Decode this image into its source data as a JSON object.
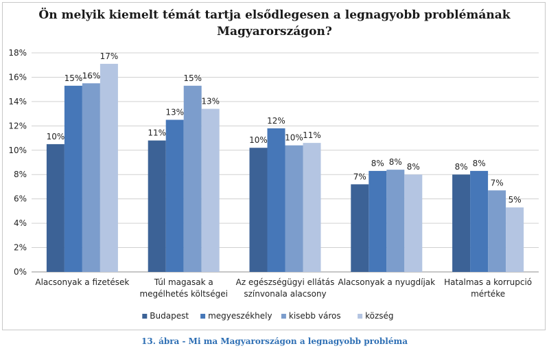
{
  "chart_data": {
    "type": "bar",
    "title_line1": "Ön melyik kiemelt témát tartja elsődlegesen a legnagyobb problémának",
    "title_line2": "Magyarországon?",
    "categories": [
      [
        "Alacsonyak a fizetések"
      ],
      [
        "Túl magasak a",
        "megélhetés költségei"
      ],
      [
        "Az egészségügyi ellátás",
        "színvonala alacsony"
      ],
      [
        "Alacsonyak a nyugdíjak"
      ],
      [
        "Hatalmas a korrupció",
        "mértéke"
      ]
    ],
    "series": [
      {
        "name": "Budapest",
        "color": "#3c6296",
        "values": [
          10.5,
          10.8,
          10.2,
          7.2,
          8.0
        ],
        "labels": [
          "10%",
          "11%",
          "10%",
          "7%",
          "8%"
        ]
      },
      {
        "name": "megyeszékhely",
        "color": "#4677b8",
        "values": [
          15.3,
          12.5,
          11.8,
          8.3,
          8.3
        ],
        "labels": [
          "15%",
          "13%",
          "12%",
          "8%",
          "8%"
        ]
      },
      {
        "name": "kisebb város",
        "color": "#7c9dcc",
        "values": [
          15.5,
          15.3,
          10.4,
          8.4,
          6.7
        ],
        "labels": [
          "16%",
          "15%",
          "10%",
          "8%",
          "7%"
        ]
      },
      {
        "name": "község",
        "color": "#b4c5e2",
        "values": [
          17.1,
          13.4,
          10.6,
          8.0,
          5.3
        ],
        "labels": [
          "17%",
          "13%",
          "11%",
          "8%",
          "5%"
        ]
      }
    ],
    "y_ticks": [
      "0%",
      "2%",
      "4%",
      "6%",
      "8%",
      "10%",
      "12%",
      "14%",
      "16%",
      "18%"
    ],
    "ylim": [
      0,
      18
    ],
    "grid": true,
    "legend": "bottom"
  },
  "caption": "13. ábra - Mi ma Magyarországon a legnagyobb probléma"
}
